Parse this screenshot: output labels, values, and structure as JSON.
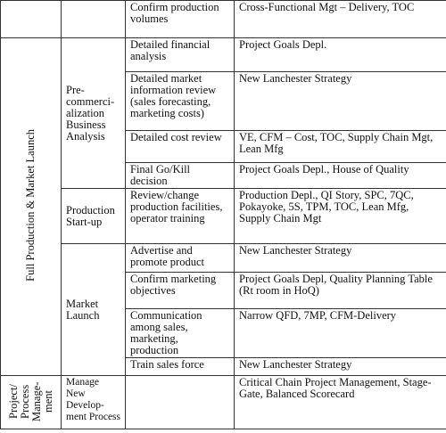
{
  "table": {
    "top_row": {
      "activity": "Confirm production volumes",
      "tools": "Cross-Functional Mgt – Delivery, TOC"
    },
    "phase": "Full Production & Market Launch",
    "groups": [
      {
        "label": "Pre-commerci-alization Business Analysis",
        "rows": [
          {
            "activity": "Detailed financial analysis",
            "tools": "Project Goals Depl."
          },
          {
            "activity": "Detailed market information review (sales forecasting, marketing costs)",
            "tools": "New Lanchester Strategy"
          },
          {
            "activity": "Detailed cost review",
            "tools": "VE, CFM – Cost, TOC, Supply Chain Mgt, Lean Mfg"
          },
          {
            "activity": "Final Go/Kill decision",
            "tools": "Project Goals Depl., House of Quality"
          }
        ]
      },
      {
        "label": "Production Start-up",
        "rows": [
          {
            "activity": "Review/change production facilities, operator training",
            "tools": "Production Depl., QI Story, SPC, 7QC, Pokayoke, 5S, TPM, TOC, Lean Mfg, Supply Chain Mgt"
          }
        ]
      },
      {
        "label": "Market Launch",
        "rows": [
          {
            "activity": "Advertise and promote product",
            "tools": "New Lanchester Strategy"
          },
          {
            "activity": "Confirm marketing objectives",
            "tools": "Project Goals Depl, Quality Planning Table (Rt room in HoQ)"
          },
          {
            "activity": "Communication among sales, marketing, production",
            "tools": "Narrow QFD, 7MP, CFM-Delivery"
          },
          {
            "activity": "Train sales force",
            "tools": "New Lanchester Strategy"
          }
        ]
      }
    ],
    "last_row": {
      "phase": "Project/ Process Manage-ment",
      "group": "Manage New Develop-ment Process",
      "tools": "Critical Chain Project Management, Stage-Gate, Balanced Scorecard"
    }
  }
}
